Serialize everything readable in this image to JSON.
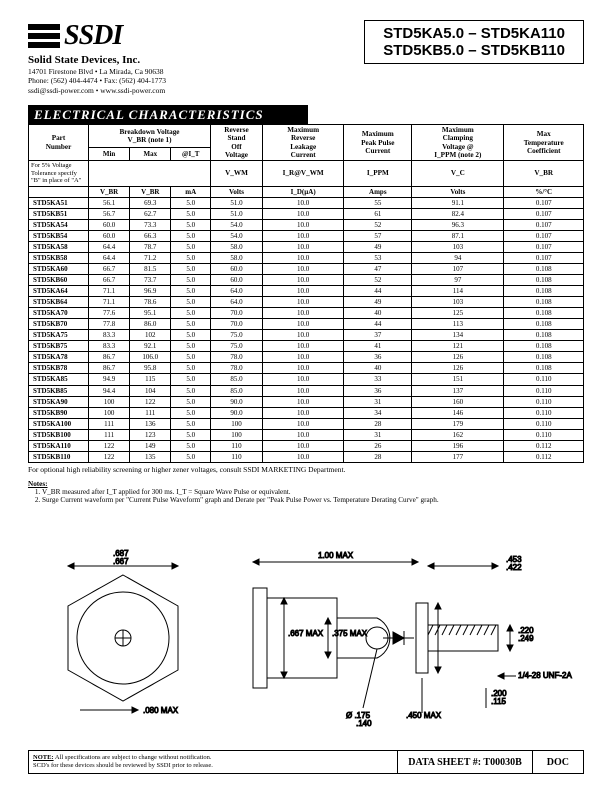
{
  "header": {
    "logo_text": "SSDI",
    "company": "Solid State Devices, Inc.",
    "addr1": "14701 Firestone Blvd • La Mirada, Ca 90638",
    "addr2": "Phone: (562) 404-4474 • Fax: (562) 404-1773",
    "addr3": "ssdi@ssdi-power.com • www.ssdi-power.com",
    "part_line1": "STD5KA5.0 – STD5KA110",
    "part_line2": "STD5KB5.0 – STD5KB110"
  },
  "section_title": "ELECTRICAL CHARACTERISTICS",
  "table": {
    "head1": [
      "Part\nNumber",
      "Breakdown Voltage\nV_BR (note 1)",
      "Reverse\nStand\nOff\nVoltage",
      "Maximum\nReverse\nLeakage\nCurrent",
      "Maximum\nPeak Pulse\nCurrent",
      "Maximum\nClamping\nVoltage @\nI_PPM (note 2)",
      "Max\nTemperature\nCoefficient"
    ],
    "tol_note": "For 5% Voltage\nTolerance specify\n\"B\" in place of \"A\"",
    "sub_bv": [
      "Min",
      "Max",
      "@I_T"
    ],
    "symrow": [
      "V_BR",
      "V_BR",
      "mA",
      "Volts",
      "I_D(µA)",
      "Amps",
      "Volts",
      "%/°C"
    ],
    "head2_over_sub": [
      "V_WM",
      "I_R@V_WM",
      "I_PPM",
      "V_C",
      "V_BR"
    ],
    "rows": [
      [
        "STD5KA51",
        "56.1",
        "69.3",
        "5.0",
        "51.0",
        "10.0",
        "55",
        "91.1",
        "0.107"
      ],
      [
        "STD5KB51",
        "56.7",
        "62.7",
        "5.0",
        "51.0",
        "10.0",
        "61",
        "82.4",
        "0.107"
      ],
      [
        "STD5KA54",
        "60.0",
        "73.3",
        "5.0",
        "54.0",
        "10.0",
        "52",
        "96.3",
        "0.107"
      ],
      [
        "STD5KB54",
        "60.0",
        "66.3",
        "5.0",
        "54.0",
        "10.0",
        "57",
        "87.1",
        "0.107"
      ],
      [
        "STD5KA58",
        "64.4",
        "78.7",
        "5.0",
        "58.0",
        "10.0",
        "49",
        "103",
        "0.107"
      ],
      [
        "STD5KB58",
        "64.4",
        "71.2",
        "5.0",
        "58.0",
        "10.0",
        "53",
        "94",
        "0.107"
      ],
      [
        "STD5KA60",
        "66.7",
        "81.5",
        "5.0",
        "60.0",
        "10.0",
        "47",
        "107",
        "0.108"
      ],
      [
        "STD5KB60",
        "66.7",
        "73.7",
        "5.0",
        "60.0",
        "10.0",
        "52",
        "97",
        "0.108"
      ],
      [
        "STD5KA64",
        "71.1",
        "96.9",
        "5.0",
        "64.0",
        "10.0",
        "44",
        "114",
        "0.108"
      ],
      [
        "STD5KB64",
        "71.1",
        "78.6",
        "5.0",
        "64.0",
        "10.0",
        "49",
        "103",
        "0.108"
      ],
      [
        "STD5KA70",
        "77.6",
        "95.1",
        "5.0",
        "70.0",
        "10.0",
        "40",
        "125",
        "0.108"
      ],
      [
        "STD5KB70",
        "77.8",
        "86.0",
        "5.0",
        "70.0",
        "10.0",
        "44",
        "113",
        "0.108"
      ],
      [
        "STD5KA75",
        "83.3",
        "102",
        "5.0",
        "75.0",
        "10.0",
        "37",
        "134",
        "0.108"
      ],
      [
        "STD5KB75",
        "83.3",
        "92.1",
        "5.0",
        "75.0",
        "10.0",
        "41",
        "121",
        "0.108"
      ],
      [
        "STD5KA78",
        "86.7",
        "106.0",
        "5.0",
        "78.0",
        "10.0",
        "36",
        "126",
        "0.108"
      ],
      [
        "STD5KB78",
        "86.7",
        "95.8",
        "5.0",
        "78.0",
        "10.0",
        "40",
        "126",
        "0.108"
      ],
      [
        "STD5KA85",
        "94.9",
        "115",
        "5.0",
        "85.0",
        "10.0",
        "33",
        "151",
        "0.110"
      ],
      [
        "STD5KB85",
        "94.4",
        "104",
        "5.0",
        "85.0",
        "10.0",
        "36",
        "137",
        "0.110"
      ],
      [
        "STD5KA90",
        "100",
        "122",
        "5.0",
        "90.0",
        "10.0",
        "31",
        "160",
        "0.110"
      ],
      [
        "STD5KB90",
        "100",
        "111",
        "5.0",
        "90.0",
        "10.0",
        "34",
        "146",
        "0.110"
      ],
      [
        "STD5KA100",
        "111",
        "136",
        "5.0",
        "100",
        "10.0",
        "28",
        "179",
        "0.110"
      ],
      [
        "STD5KB100",
        "111",
        "123",
        "5.0",
        "100",
        "10.0",
        "31",
        "162",
        "0.110"
      ],
      [
        "STD5KA110",
        "122",
        "149",
        "5.0",
        "110",
        "10.0",
        "26",
        "196",
        "0.112"
      ],
      [
        "STD5KB110",
        "122",
        "135",
        "5.0",
        "110",
        "10.0",
        "28",
        "177",
        "0.112"
      ]
    ]
  },
  "after_table": "For optional high reliability screening or higher zener voltages, consult SSDI MARKETING Department.",
  "notes": {
    "heading": "Notes:",
    "items": [
      "V_BR measured after I_T applied for 300 ms. I_T = Square Wave Pulse or equivalent.",
      "Surge Current waveform per \"Current Pulse Waveform\" graph and Derate per \"Peak Pulse Power vs. Temperature Derating Curve\" graph."
    ]
  },
  "diagram": {
    "dims": {
      "d687": ".687",
      "d667_left": ".667",
      "d080": ".080 MAX",
      "d100max": "1.00 MAX",
      "d453": ".453",
      "d422": ".422",
      "d220": ".220",
      "d249": ".249",
      "d667max": ".667\nMAX",
      "d375max": ".375\nMAX",
      "d0175": "Ø .175",
      "d140": ".140",
      "d450max": ".450\nMAX",
      "d200": ".200",
      "d115": ".115",
      "thread": "1/4-28 UNF-2A"
    },
    "colors": {
      "line": "#000000",
      "fill": "#ffffff"
    }
  },
  "footer": {
    "note_label": "NOTE:",
    "note_text": "All specifications are subject to change without notification.\nSCD's for these devices should be reviewed by SSDI prior to release.",
    "datasheet": "DATA SHEET #: T00030B",
    "doc": "DOC"
  }
}
